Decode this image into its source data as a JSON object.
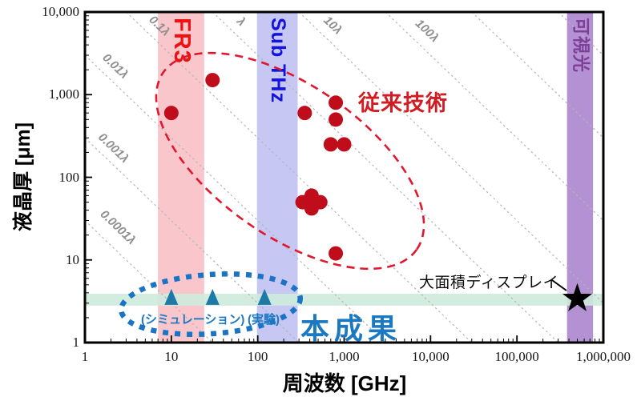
{
  "chart_data": {
    "type": "scatter",
    "title": "",
    "xlabel": "周波数 [GHz]",
    "ylabel": "液晶厚 [μm]",
    "x_scale": "log",
    "y_scale": "log",
    "xlim": [
      1,
      1000000
    ],
    "ylim": [
      1,
      10000
    ],
    "x_tick_labels": [
      "1",
      "10",
      "100",
      "1,000",
      "10,000",
      "100,000",
      "1,000,000"
    ],
    "y_tick_labels": [
      "1",
      "10",
      "100",
      "1,000",
      "10,000"
    ],
    "grid": "diagonal wavelength guides, dotted gray",
    "legend_position": "annotations inside plot",
    "units": "x = frequency GHz, y = liquid-crystal thickness um",
    "series": [
      {
        "name": "従来技術",
        "marker": "circle",
        "color": "#c00d1c",
        "points": [
          [
            10,
            600
          ],
          [
            30,
            1500
          ],
          [
            350,
            600
          ],
          [
            800,
            800
          ],
          [
            800,
            500
          ],
          [
            700,
            250
          ],
          [
            1000,
            250
          ],
          [
            420,
            60
          ],
          [
            330,
            50
          ],
          [
            530,
            50
          ],
          [
            420,
            42
          ],
          [
            800,
            12
          ]
        ]
      },
      {
        "name": "本成果",
        "marker": "triangle",
        "color": "#1d7aa6",
        "points": [
          [
            10,
            3.5
          ],
          [
            30,
            3.5
          ],
          [
            120,
            3.5
          ]
        ]
      },
      {
        "name": "大面積ディスプレイ",
        "marker": "star",
        "color": "#000000",
        "points": [
          [
            500000,
            3.4
          ]
        ]
      }
    ],
    "lambda_guides": {
      "relation": "thickness d = k × λ,  λ[μm] = 300000 / f[GHz]",
      "line_color": "#b5b5b5",
      "label_color": "#8f8f8f",
      "lines": [
        {
          "k": 0.0001,
          "label": "0.0001λ",
          "label_at": [
            2.25,
            23
          ]
        },
        {
          "k": 0.001,
          "label": "0.001λ",
          "label_at": [
            2.0,
            210
          ]
        },
        {
          "k": 0.01,
          "label": "0.01λ",
          "label_at": [
            2.1,
            2050
          ]
        },
        {
          "k": 0.1,
          "label": "0.1λ",
          "label_at": [
            6.8,
            6300
          ]
        },
        {
          "k": 1,
          "label": "λ",
          "label_at": [
            60,
            7100
          ]
        },
        {
          "k": 10,
          "label": "10λ",
          "label_at": [
            690,
            6400
          ]
        },
        {
          "k": 100,
          "label": "100λ",
          "label_at": [
            8500,
            5500
          ]
        },
        {
          "k": 1000,
          "label": "",
          "label_at": null
        },
        {
          "k": 10000,
          "label": "",
          "label_at": null
        }
      ]
    },
    "vertical_bands": [
      {
        "id": "fr3",
        "label": "FR3",
        "range_ghz": [
          7,
          24
        ],
        "fill": "#f8c6cb",
        "label_color": "#ee1111",
        "label_size": 29
      },
      {
        "id": "sub-thz",
        "label": "Sub THz",
        "range_ghz": [
          98,
          290
        ],
        "fill": "#c6c7f2",
        "label_color": "#1313dd",
        "label_size": 25
      },
      {
        "id": "visible-light",
        "label": "可視光",
        "range_ghz": [
          380000,
          760000
        ],
        "fill": "#b491d3",
        "label_color": "#7d3f98",
        "label_size": 22
      }
    ],
    "horizontal_band": {
      "id": "target-thickness",
      "range_um": [
        2.8,
        3.9
      ],
      "fill": "#cdebdc"
    }
  },
  "annotations": {
    "conventional": {
      "text": "従来技術",
      "color": "#d21c24"
    },
    "result": {
      "text": "本成果",
      "color": "#1b78c2"
    },
    "simulation": {
      "text": "(シミュレーション)",
      "color": "#1b78c2"
    },
    "experiment": {
      "text": "(実験)",
      "color": "#1b78c2"
    },
    "display": {
      "text": "大面積ディスプレイ",
      "color": "#0c0c0c"
    }
  },
  "colors": {
    "conventional_ellipse": "#e0182e",
    "result_ellipse": "#1a73c5",
    "point_red": "#c00d1c",
    "triangle_blue": "#1d7aa6",
    "star_black": "#000000",
    "axis": "#000000",
    "guide_line": "#b5b5b5",
    "guide_label": "#8f8f8f"
  }
}
